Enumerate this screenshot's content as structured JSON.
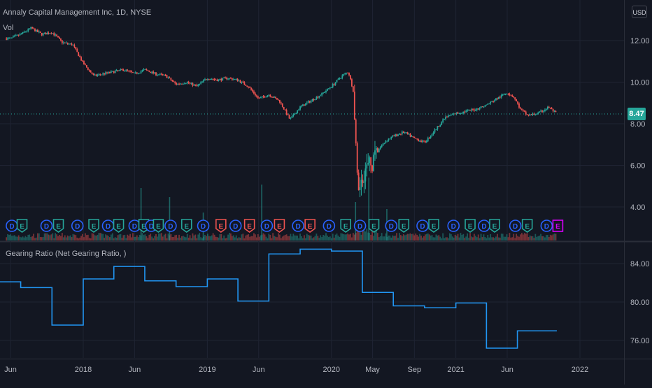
{
  "header": {
    "symbol_title": "Annaly Capital Management Inc, 1D, NYSE",
    "volume_label": "Vol",
    "currency": "USD",
    "last_price": "8.47"
  },
  "indicator": {
    "title": "Gearing Ratio (Net Gearing Ratio, )"
  },
  "colors": {
    "background": "#131722",
    "up": "#26a69a",
    "down": "#ef5350",
    "indicator_line": "#2196f3",
    "grid": "#1f2433",
    "marker_blue": "#2962ff",
    "marker_green": "#26a69a",
    "marker_red": "#ef5350",
    "marker_purple": "#d500f9"
  },
  "chart_data": [
    {
      "type": "candlestick",
      "title": "Annaly Capital Management Inc, 1D, NYSE",
      "y_ticks": [
        "12.00",
        "10.00",
        "8.00",
        "6.00",
        "4.00"
      ],
      "ylim": [
        3.0,
        13.0
      ],
      "x_ticks": [
        "Jun",
        "2018",
        "Jun",
        "2019",
        "Jun",
        "2020",
        "May",
        "Sep",
        "2021",
        "Jun",
        "2022"
      ],
      "price_path": [
        [
          "2017-06-01",
          12.1
        ],
        [
          "2017-07-01",
          12.3
        ],
        [
          "2017-08-01",
          12.6
        ],
        [
          "2017-09-01",
          12.3
        ],
        [
          "2017-10-01",
          12.4
        ],
        [
          "2017-11-01",
          11.9
        ],
        [
          "2017-12-01",
          11.8
        ],
        [
          "2018-01-01",
          10.9
        ],
        [
          "2018-02-01",
          10.3
        ],
        [
          "2018-03-01",
          10.4
        ],
        [
          "2018-04-01",
          10.5
        ],
        [
          "2018-05-01",
          10.6
        ],
        [
          "2018-06-01",
          10.4
        ],
        [
          "2018-07-01",
          10.6
        ],
        [
          "2018-08-01",
          10.4
        ],
        [
          "2018-09-01",
          10.3
        ],
        [
          "2018-10-01",
          9.9
        ],
        [
          "2018-11-01",
          10.0
        ],
        [
          "2018-12-01",
          9.8
        ],
        [
          "2019-01-01",
          10.2
        ],
        [
          "2019-02-01",
          10.1
        ],
        [
          "2019-03-01",
          10.2
        ],
        [
          "2019-04-01",
          10.1
        ],
        [
          "2019-05-01",
          9.8
        ],
        [
          "2019-06-01",
          9.2
        ],
        [
          "2019-07-01",
          9.4
        ],
        [
          "2019-08-01",
          9.1
        ],
        [
          "2019-09-01",
          8.2
        ],
        [
          "2019-10-01",
          8.8
        ],
        [
          "2019-11-01",
          9.1
        ],
        [
          "2019-12-01",
          9.4
        ],
        [
          "2020-01-01",
          9.8
        ],
        [
          "2020-02-01",
          10.3
        ],
        [
          "2020-02-20",
          10.5
        ],
        [
          "2020-03-05",
          9.6
        ],
        [
          "2020-03-12",
          7.0
        ],
        [
          "2020-03-20",
          4.2
        ],
        [
          "2020-03-27",
          5.4
        ],
        [
          "2020-04-15",
          5.9
        ],
        [
          "2020-05-01",
          6.1
        ],
        [
          "2020-05-20",
          6.8
        ],
        [
          "2020-06-10",
          7.2
        ],
        [
          "2020-07-01",
          7.4
        ],
        [
          "2020-08-01",
          7.6
        ],
        [
          "2020-09-01",
          7.3
        ],
        [
          "2020-10-01",
          7.1
        ],
        [
          "2020-11-01",
          7.7
        ],
        [
          "2020-12-01",
          8.3
        ],
        [
          "2021-01-01",
          8.5
        ],
        [
          "2021-02-01",
          8.6
        ],
        [
          "2021-03-01",
          8.7
        ],
        [
          "2021-04-01",
          8.9
        ],
        [
          "2021-05-01",
          9.2
        ],
        [
          "2021-06-01",
          9.5
        ],
        [
          "2021-06-20",
          9.3
        ],
        [
          "2021-07-10",
          8.7
        ],
        [
          "2021-08-01",
          8.4
        ],
        [
          "2021-09-01",
          8.5
        ],
        [
          "2021-10-01",
          8.8
        ],
        [
          "2021-10-25",
          8.47
        ]
      ],
      "last_value": 8.47,
      "event_markers": [
        {
          "date": "2017-06-05",
          "kind": "D",
          "color": "blue"
        },
        {
          "date": "2017-07-05",
          "kind": "E",
          "color": "green"
        },
        {
          "date": "2017-09-15",
          "kind": "D",
          "color": "blue"
        },
        {
          "date": "2017-10-20",
          "kind": "E",
          "color": "green"
        },
        {
          "date": "2017-12-15",
          "kind": "D",
          "color": "blue"
        },
        {
          "date": "2018-02-01",
          "kind": "E",
          "color": "green"
        },
        {
          "date": "2018-03-15",
          "kind": "D",
          "color": "blue"
        },
        {
          "date": "2018-04-15",
          "kind": "E",
          "color": "green"
        },
        {
          "date": "2018-06-01",
          "kind": "D",
          "color": "blue"
        },
        {
          "date": "2018-06-28",
          "kind": "E",
          "color": "green"
        },
        {
          "date": "2018-07-20",
          "kind": "D",
          "color": "blue"
        },
        {
          "date": "2018-08-10",
          "kind": "E",
          "color": "green"
        },
        {
          "date": "2018-09-15",
          "kind": "D",
          "color": "blue"
        },
        {
          "date": "2018-11-01",
          "kind": "E",
          "color": "green"
        },
        {
          "date": "2018-12-20",
          "kind": "D",
          "color": "blue"
        },
        {
          "date": "2019-02-10",
          "kind": "E",
          "color": "red"
        },
        {
          "date": "2019-03-25",
          "kind": "D",
          "color": "blue"
        },
        {
          "date": "2019-05-05",
          "kind": "E",
          "color": "red"
        },
        {
          "date": "2019-06-25",
          "kind": "D",
          "color": "blue"
        },
        {
          "date": "2019-08-01",
          "kind": "E",
          "color": "red"
        },
        {
          "date": "2019-09-25",
          "kind": "D",
          "color": "blue"
        },
        {
          "date": "2019-10-30",
          "kind": "E",
          "color": "red"
        },
        {
          "date": "2019-12-25",
          "kind": "D",
          "color": "blue"
        },
        {
          "date": "2020-02-12",
          "kind": "E",
          "color": "green"
        },
        {
          "date": "2020-03-25",
          "kind": "D",
          "color": "blue"
        },
        {
          "date": "2020-05-05",
          "kind": "E",
          "color": "green"
        },
        {
          "date": "2020-06-25",
          "kind": "D",
          "color": "blue"
        },
        {
          "date": "2020-08-01",
          "kind": "E",
          "color": "green"
        },
        {
          "date": "2020-09-25",
          "kind": "D",
          "color": "blue"
        },
        {
          "date": "2020-10-28",
          "kind": "E",
          "color": "green"
        },
        {
          "date": "2020-12-25",
          "kind": "D",
          "color": "blue"
        },
        {
          "date": "2021-02-12",
          "kind": "E",
          "color": "green"
        },
        {
          "date": "2021-03-25",
          "kind": "D",
          "color": "blue"
        },
        {
          "date": "2021-04-25",
          "kind": "E",
          "color": "green"
        },
        {
          "date": "2021-06-25",
          "kind": "D",
          "color": "blue"
        },
        {
          "date": "2021-07-30",
          "kind": "E",
          "color": "green"
        },
        {
          "date": "2021-09-25",
          "kind": "D",
          "color": "blue"
        },
        {
          "date": "2021-10-28",
          "kind": "E",
          "color": "purple"
        }
      ]
    },
    {
      "type": "line",
      "title": "Gearing Ratio (Net Gearing Ratio, )",
      "y_ticks": [
        "84.00",
        "80.00",
        "76.00"
      ],
      "ylim": [
        74.5,
        86.2
      ],
      "step": true,
      "series": [
        {
          "x": [
            "2017-05-01",
            "2017-07-01",
            "2017-10-01",
            "2018-01-01",
            "2018-04-01",
            "2018-07-01",
            "2018-10-01",
            "2019-01-01",
            "2019-04-01",
            "2019-07-01",
            "2019-10-01",
            "2020-01-01",
            "2020-04-01",
            "2020-07-01",
            "2020-10-01",
            "2021-01-01",
            "2021-04-01",
            "2021-07-01",
            "2021-10-25"
          ],
          "values": [
            82.1,
            81.5,
            77.6,
            82.4,
            83.7,
            82.2,
            81.6,
            82.4,
            80.1,
            85.0,
            85.5,
            85.3,
            81.0,
            79.6,
            79.4,
            79.9,
            75.2,
            77.0,
            77.0
          ]
        }
      ]
    }
  ]
}
